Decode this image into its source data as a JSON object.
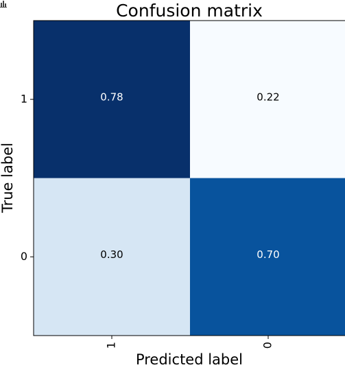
{
  "chart_data": {
    "type": "heatmap",
    "title": "Confusion matrix",
    "xlabel": "Predicted label",
    "ylabel": "True label",
    "x_categories": [
      "1",
      "0"
    ],
    "y_categories": [
      "1",
      "0"
    ],
    "values": [
      [
        0.78,
        0.22
      ],
      [
        0.3,
        0.7
      ]
    ],
    "value_labels": [
      [
        "0.78",
        "0.22"
      ],
      [
        "0.30",
        "0.70"
      ]
    ],
    "colormap": "Blues",
    "color_range": [
      0.22,
      0.78
    ],
    "cell_colors": [
      [
        "#08306b",
        "#f7fbff"
      ],
      [
        "#d6e6f4",
        "#08539d"
      ]
    ],
    "text_colors": [
      [
        "#ffffff",
        "#000000"
      ],
      [
        "#000000",
        "#ffffff"
      ]
    ],
    "grid": false
  }
}
